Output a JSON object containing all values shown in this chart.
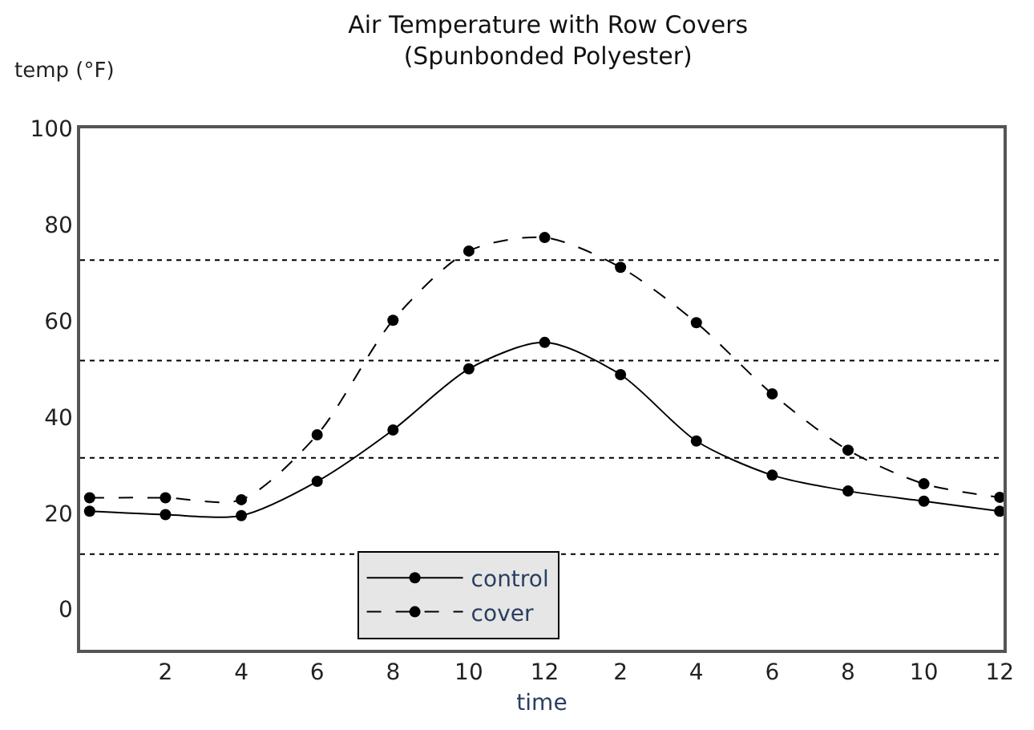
{
  "chart_data": {
    "type": "line",
    "title": "Air Temperature with Row Covers",
    "subtitle": "(Spunbonded Polyester)",
    "xlabel": "time",
    "ylabel": "temp (°F)",
    "categories": [
      null,
      "2",
      "4",
      "6",
      "8",
      "10",
      "12",
      "2",
      "4",
      "6",
      "8",
      "10",
      "12"
    ],
    "series": [
      {
        "name": "control",
        "color": "#000000",
        "line_style": "solid",
        "values": [
          20.4,
          19.7,
          19.5,
          26.6,
          37.3,
          50.0,
          55.5,
          48.8,
          35.0,
          27.9,
          24.6,
          22.5,
          20.4
        ]
      },
      {
        "name": "cover",
        "color": "#000000",
        "line_style": "dashed",
        "values": [
          23.2,
          23.2,
          22.8,
          36.3,
          60.1,
          74.5,
          77.3,
          71.1,
          59.6,
          44.8,
          33.1,
          26.1,
          23.3
        ]
      }
    ],
    "ylim": [
      -8.4,
      100
    ],
    "yticks": [
      0,
      20,
      40,
      60,
      80,
      100
    ],
    "ref_lines": [
      {
        "axis": "y",
        "value": 11.5,
        "line_style": "dotted",
        "color": "#000000"
      },
      {
        "axis": "y",
        "value": 31.5,
        "line_style": "dotted",
        "color": "#000000"
      },
      {
        "axis": "y",
        "value": 51.7,
        "line_style": "dotted",
        "color": "#000000"
      },
      {
        "axis": "y",
        "value": 72.6,
        "line_style": "dotted",
        "color": "#000000"
      }
    ],
    "marker": "circle",
    "grid": false,
    "legend": "bottom"
  }
}
